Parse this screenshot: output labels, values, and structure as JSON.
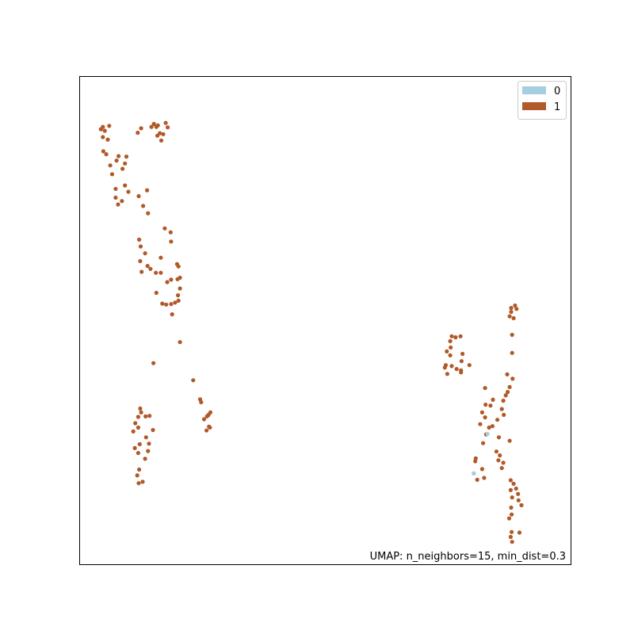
{
  "chart_data": {
    "type": "scatter",
    "caption": "UMAP: n_neighbors=15, min_dist=0.3",
    "grid": false,
    "axis_ticks": false,
    "legend_position": "top-right",
    "xlim": [
      0,
      100
    ],
    "ylim": [
      0,
      100
    ],
    "series": [
      {
        "name": "0",
        "color": "#a6cee3",
        "points": [
          [
            83.1,
            26.7
          ],
          [
            80.3,
            18.6
          ]
        ]
      },
      {
        "name": "1",
        "color": "#b15928",
        "points": [
          [
            15.2,
            90.2
          ],
          [
            15.7,
            89.6
          ],
          [
            16.0,
            89.9
          ],
          [
            12.6,
            89.3
          ],
          [
            14.7,
            89.6
          ],
          [
            4.8,
            89.6
          ],
          [
            4.4,
            89.1
          ],
          [
            5.2,
            88.8
          ],
          [
            6.1,
            89.8
          ],
          [
            11.9,
            88.4
          ],
          [
            15.9,
            87.8
          ],
          [
            16.4,
            88.3
          ],
          [
            17.1,
            88.1
          ],
          [
            17.6,
            90.4
          ],
          [
            18.0,
            89.5
          ],
          [
            4.8,
            87.5
          ],
          [
            5.8,
            87.0
          ],
          [
            16.7,
            86.8
          ],
          [
            4.9,
            84.6
          ],
          [
            5.5,
            84.0
          ],
          [
            8.0,
            83.6
          ],
          [
            9.6,
            83.5
          ],
          [
            7.6,
            82.7
          ],
          [
            9.3,
            82.1
          ],
          [
            6.3,
            81.7
          ],
          [
            8.8,
            81.0
          ],
          [
            6.7,
            79.9
          ],
          [
            9.3,
            77.6
          ],
          [
            7.4,
            76.9
          ],
          [
            10.0,
            76.3
          ],
          [
            13.8,
            76.6
          ],
          [
            12.1,
            75.4
          ],
          [
            7.4,
            75.1
          ],
          [
            8.7,
            74.4
          ],
          [
            7.9,
            73.7
          ],
          [
            13.0,
            73.4
          ],
          [
            14.0,
            71.9
          ],
          [
            17.4,
            68.8
          ],
          [
            18.6,
            68.0
          ],
          [
            12.2,
            66.5
          ],
          [
            12.5,
            65.1
          ],
          [
            18.7,
            66.1
          ],
          [
            13.4,
            63.7
          ],
          [
            16.6,
            62.8
          ],
          [
            12.4,
            62.1
          ],
          [
            19.9,
            61.5
          ],
          [
            20.2,
            61.0
          ],
          [
            13.9,
            61.1
          ],
          [
            14.5,
            60.5
          ],
          [
            12.7,
            59.9
          ],
          [
            15.6,
            59.7
          ],
          [
            16.6,
            59.7
          ],
          [
            20.5,
            58.7
          ],
          [
            18.7,
            58.3
          ],
          [
            20.0,
            58.4
          ],
          [
            17.9,
            57.8
          ],
          [
            15.7,
            55.6
          ],
          [
            20.5,
            56.5
          ],
          [
            20.1,
            55.1
          ],
          [
            19.5,
            53.6
          ],
          [
            17.7,
            53.2
          ],
          [
            18.7,
            53.3
          ],
          [
            20.2,
            54.0
          ],
          [
            16.9,
            53.4
          ],
          [
            18.9,
            51.2
          ],
          [
            20.5,
            45.5
          ],
          [
            15.1,
            41.2
          ],
          [
            23.2,
            37.7
          ],
          [
            12.4,
            31.9
          ],
          [
            12.6,
            31.1
          ],
          [
            24.6,
            33.8
          ],
          [
            24.8,
            33.2
          ],
          [
            12.0,
            30.2
          ],
          [
            13.5,
            30.3
          ],
          [
            14.3,
            30.4
          ],
          [
            26.7,
            31.1
          ],
          [
            26.0,
            30.3
          ],
          [
            26.3,
            30.6
          ],
          [
            11.4,
            28.9
          ],
          [
            12.0,
            28.0
          ],
          [
            25.4,
            29.7
          ],
          [
            26.4,
            28.2
          ],
          [
            26.6,
            28.0
          ],
          [
            25.9,
            27.4
          ],
          [
            11.0,
            27.2
          ],
          [
            15.0,
            27.5
          ],
          [
            13.6,
            26.0
          ],
          [
            12.3,
            24.6
          ],
          [
            11.3,
            23.8
          ],
          [
            14.2,
            24.7
          ],
          [
            14.0,
            23.2
          ],
          [
            12.0,
            22.8
          ],
          [
            13.4,
            21.6
          ],
          [
            12.2,
            19.4
          ],
          [
            11.8,
            18.2
          ],
          [
            12.1,
            16.6
          ],
          [
            12.9,
            16.9
          ],
          [
            88.7,
            53.0
          ],
          [
            87.9,
            52.5
          ],
          [
            89.0,
            52.3
          ],
          [
            87.9,
            51.7
          ],
          [
            87.6,
            50.8
          ],
          [
            88.4,
            50.4
          ],
          [
            75.8,
            46.7
          ],
          [
            76.6,
            46.5
          ],
          [
            77.6,
            46.7
          ],
          [
            75.5,
            45.7
          ],
          [
            75.6,
            44.4
          ],
          [
            74.8,
            43.6
          ],
          [
            78.0,
            43.1
          ],
          [
            88.1,
            47.0
          ],
          [
            75.5,
            42.8
          ],
          [
            77.8,
            41.6
          ],
          [
            75.8,
            40.6
          ],
          [
            74.6,
            40.8
          ],
          [
            74.4,
            40.3
          ],
          [
            79.4,
            40.8
          ],
          [
            77.7,
            39.7
          ],
          [
            76.8,
            40.0
          ],
          [
            74.9,
            39.0
          ],
          [
            77.7,
            39.3
          ],
          [
            88.1,
            43.3
          ],
          [
            87.1,
            38.9
          ],
          [
            88.2,
            38.0
          ],
          [
            82.6,
            36.1
          ],
          [
            87.6,
            36.3
          ],
          [
            86.8,
            34.6
          ],
          [
            87.2,
            35.3
          ],
          [
            84.2,
            33.7
          ],
          [
            86.3,
            33.5
          ],
          [
            82.7,
            32.7
          ],
          [
            83.7,
            32.5
          ],
          [
            82.0,
            31.1
          ],
          [
            86.0,
            31.8
          ],
          [
            86.4,
            30.6
          ],
          [
            82.6,
            30.1
          ],
          [
            84.1,
            28.3
          ],
          [
            85.1,
            29.6
          ],
          [
            83.4,
            28.0
          ],
          [
            81.6,
            28.7
          ],
          [
            85.4,
            26.0
          ],
          [
            82.8,
            26.6
          ],
          [
            87.6,
            25.3
          ],
          [
            82.2,
            24.8
          ],
          [
            84.9,
            23.1
          ],
          [
            80.7,
            21.7
          ],
          [
            80.6,
            21.1
          ],
          [
            85.6,
            22.3
          ],
          [
            85.3,
            21.3
          ],
          [
            86.3,
            20.8
          ],
          [
            86.0,
            19.7
          ],
          [
            82.0,
            19.5
          ],
          [
            80.3,
            18.6
          ],
          [
            81.0,
            17.3
          ],
          [
            82.4,
            17.7
          ],
          [
            87.8,
            17.2
          ],
          [
            88.4,
            16.5
          ],
          [
            88.9,
            15.5
          ],
          [
            87.8,
            15.2
          ],
          [
            89.3,
            14.4
          ],
          [
            89.4,
            13.1
          ],
          [
            88.1,
            13.7
          ],
          [
            87.9,
            11.6
          ],
          [
            88.0,
            10.2
          ],
          [
            90.0,
            12.1
          ],
          [
            87.5,
            9.4
          ],
          [
            88.0,
            6.6
          ],
          [
            89.6,
            6.5
          ],
          [
            87.8,
            5.6
          ],
          [
            88.1,
            4.6
          ]
        ]
      }
    ]
  }
}
